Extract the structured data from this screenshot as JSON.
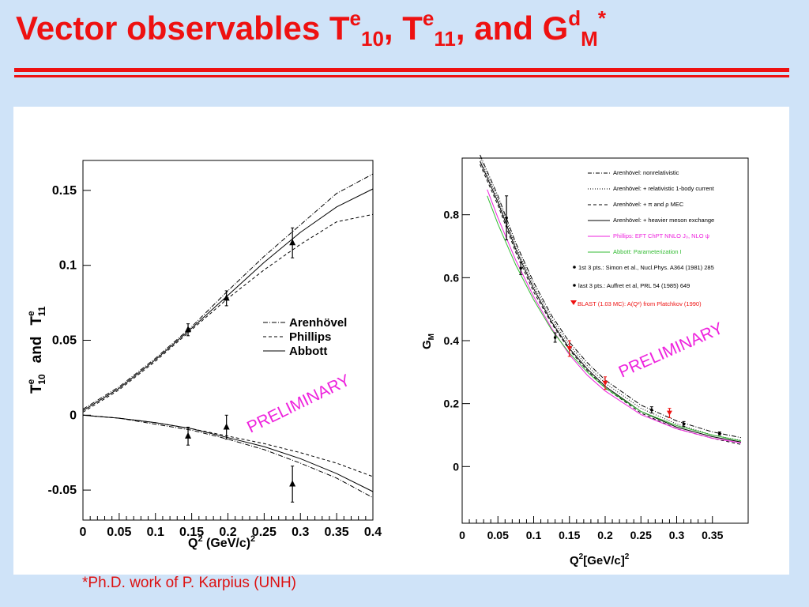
{
  "title": {
    "prefix": "Vector observables T",
    "sup1": "e",
    "sub1": "10",
    "mid1": ", T",
    "sup2": "e",
    "sub2": "11",
    "mid2": ", and G",
    "sup3": "d",
    "sub3": "M",
    "star": "*"
  },
  "footnote": "*Ph.D. work of P. Karpius (UNH)",
  "colors": {
    "title_red": "#ee1111",
    "magenta": "#ee22dd",
    "green": "#33bb33",
    "blast_red": "#ee1111"
  },
  "chart_data": [
    {
      "type": "line",
      "xlabel": "Q",
      "xlabel_sup": "2",
      "xlabel_unit": " (GeV/c)",
      "xlabel_unit_sup": "2",
      "ylabel": {
        "t10": "T",
        "t10_sup": "e",
        "t10_sub": "10",
        "and": "and",
        "t11": "T",
        "t11_sup": "e",
        "t11_sub": "11"
      },
      "xlim": [
        0,
        0.4
      ],
      "ylim": [
        -0.07,
        0.17
      ],
      "x_ticks": [
        "0",
        "0.05",
        "0.1",
        "0.15",
        "0.2",
        "0.25",
        "0.3",
        "0.35",
        "0.4"
      ],
      "y_ticks": [
        {
          "v": 0.15,
          "label": "0.15"
        },
        {
          "v": 0.1,
          "label": "0.1"
        },
        {
          "v": 0.05,
          "label": "0.05"
        },
        {
          "v": 0,
          "label": "0"
        },
        {
          "v": -0.05,
          "label": "-0.05"
        }
      ],
      "legend": {
        "placement": "right",
        "entries": [
          {
            "name": "Arenhövel",
            "dash": "dashdot"
          },
          {
            "name": "Phillips",
            "dash": "dashed"
          },
          {
            "name": "Abbott",
            "dash": "solid"
          }
        ]
      },
      "annotation": "PRELIMINARY",
      "series": [
        {
          "group": "T10",
          "model": "Arenhövel",
          "dash": "dashdot",
          "x": [
            0,
            0.05,
            0.1,
            0.15,
            0.2,
            0.25,
            0.3,
            0.35,
            0.4
          ],
          "y": [
            0.004,
            0.019,
            0.038,
            0.059,
            0.083,
            0.106,
            0.127,
            0.148,
            0.161
          ]
        },
        {
          "group": "T10",
          "model": "Phillips",
          "dash": "dashed",
          "x": [
            0,
            0.05,
            0.1,
            0.15,
            0.2,
            0.25,
            0.3,
            0.35,
            0.4
          ],
          "y": [
            0.002,
            0.017,
            0.036,
            0.057,
            0.078,
            0.097,
            0.114,
            0.129,
            0.134
          ]
        },
        {
          "group": "T10",
          "model": "Abbott",
          "dash": "solid",
          "x": [
            0,
            0.05,
            0.1,
            0.15,
            0.2,
            0.25,
            0.3,
            0.35,
            0.4
          ],
          "y": [
            0.003,
            0.018,
            0.037,
            0.058,
            0.08,
            0.102,
            0.122,
            0.139,
            0.151
          ]
        },
        {
          "group": "T11",
          "model": "Arenhövel",
          "dash": "dashdot",
          "x": [
            0,
            0.05,
            0.1,
            0.15,
            0.2,
            0.25,
            0.3,
            0.35,
            0.4
          ],
          "y": [
            0,
            -0.002,
            -0.006,
            -0.01,
            -0.016,
            -0.023,
            -0.032,
            -0.042,
            -0.055
          ]
        },
        {
          "group": "T11",
          "model": "Phillips",
          "dash": "dashed",
          "x": [
            0,
            0.05,
            0.1,
            0.15,
            0.2,
            0.25,
            0.3,
            0.35,
            0.4
          ],
          "y": [
            0,
            -0.002,
            -0.005,
            -0.009,
            -0.014,
            -0.019,
            -0.025,
            -0.032,
            -0.041
          ]
        },
        {
          "group": "T11",
          "model": "Abbott",
          "dash": "solid",
          "x": [
            0,
            0.05,
            0.1,
            0.15,
            0.2,
            0.25,
            0.3,
            0.35,
            0.4
          ],
          "y": [
            0,
            -0.002,
            -0.005,
            -0.009,
            -0.015,
            -0.021,
            -0.029,
            -0.039,
            -0.051
          ]
        }
      ],
      "points": [
        {
          "group": "T10",
          "x": 0.145,
          "y": 0.057,
          "err": 0.004
        },
        {
          "group": "T10",
          "x": 0.198,
          "y": 0.078,
          "err": 0.005
        },
        {
          "group": "T10",
          "x": 0.289,
          "y": 0.115,
          "err": 0.01
        },
        {
          "group": "T11",
          "x": 0.145,
          "y": -0.014,
          "err": 0.006
        },
        {
          "group": "T11",
          "x": 0.198,
          "y": -0.008,
          "err": 0.008
        },
        {
          "group": "T11",
          "x": 0.289,
          "y": -0.046,
          "err": 0.012
        }
      ]
    },
    {
      "type": "line",
      "xlabel": "Q",
      "xlabel_sup": "2",
      "xlabel_unit": "[GeV/c]",
      "xlabel_unit_sup": "2",
      "ylabel": "G",
      "ylabel_sub": "M",
      "xlim": [
        0,
        0.4
      ],
      "ylim": [
        -0.18,
        0.98
      ],
      "x_ticks": [
        "0",
        "0.05",
        "0.1",
        "0.15",
        "0.2",
        "0.25",
        "0.3",
        "0.35"
      ],
      "y_ticks": [
        {
          "v": 0.8,
          "label": "0.8"
        },
        {
          "v": 0.6,
          "label": "0.6"
        },
        {
          "v": 0.4,
          "label": "0.4"
        },
        {
          "v": 0.2,
          "label": "0.2"
        },
        {
          "v": 0,
          "label": "0"
        }
      ],
      "legend": {
        "placement": "top-right",
        "entries": [
          {
            "name": "Arenhövel: nonrelativistic",
            "style": "dashdot",
            "color": "#000000"
          },
          {
            "name": "Arenhövel: + relativistic 1-body current",
            "style": "dotted",
            "color": "#000000"
          },
          {
            "name": "Arenhövel: + π and ρ MEC",
            "style": "dashed",
            "color": "#000000"
          },
          {
            "name": "Arenhövel: + heavier meson exchange",
            "style": "solid",
            "color": "#000000"
          },
          {
            "name": "Phillips: EFT ChPT NNLO J₀, NLO ψ",
            "style": "solid",
            "color": "#ee22dd"
          },
          {
            "name": "Abbott: Parameterization I",
            "style": "solid",
            "color": "#33bb33"
          },
          {
            "name": "1st 3 pts.: Simon et al., Nucl.Phys. A364 (1981) 285",
            "style": "dot",
            "color": "#000000"
          },
          {
            "name": "last 3 pts.: Auffret et al, PRL 54 (1985) 649",
            "style": "dot",
            "color": "#000000"
          },
          {
            "name": "BLAST (1.03 MC): A(Q²) from Platchkov (1990)",
            "style": "triangle",
            "color": "#ee1111"
          }
        ]
      },
      "annotation": "PRELIMINARY",
      "series": [
        {
          "model": "Arenhövel: nonrelativistic",
          "dash": "dashdot",
          "color": "#000000",
          "x": [
            0.025,
            0.05,
            0.075,
            0.1,
            0.125,
            0.15,
            0.175,
            0.2,
            0.25,
            0.3,
            0.35,
            0.39
          ],
          "y": [
            0.99,
            0.86,
            0.71,
            0.585,
            0.48,
            0.395,
            0.33,
            0.275,
            0.195,
            0.145,
            0.11,
            0.092
          ]
        },
        {
          "model": "Arenhövel: + relativistic 1-body current",
          "dash": "dotted",
          "color": "#000000",
          "x": [
            0.025,
            0.05,
            0.075,
            0.1,
            0.125,
            0.15,
            0.175,
            0.2,
            0.25,
            0.3,
            0.35,
            0.39
          ],
          "y": [
            0.98,
            0.85,
            0.7,
            0.575,
            0.47,
            0.385,
            0.32,
            0.265,
            0.185,
            0.135,
            0.1,
            0.083
          ]
        },
        {
          "model": "Arenhövel: + π and ρ MEC",
          "dash": "dashed",
          "color": "#000000",
          "x": [
            0.025,
            0.05,
            0.075,
            0.1,
            0.125,
            0.15,
            0.175,
            0.2,
            0.25,
            0.3,
            0.35,
            0.39
          ],
          "y": [
            0.96,
            0.83,
            0.68,
            0.555,
            0.455,
            0.37,
            0.305,
            0.25,
            0.17,
            0.12,
            0.09,
            0.07
          ]
        },
        {
          "model": "Arenhövel: + heavier meson exchange",
          "dash": "solid",
          "color": "#000000",
          "x": [
            0.025,
            0.05,
            0.075,
            0.1,
            0.125,
            0.15,
            0.175,
            0.2,
            0.25,
            0.3,
            0.35,
            0.39
          ],
          "y": [
            0.97,
            0.84,
            0.69,
            0.565,
            0.46,
            0.375,
            0.31,
            0.255,
            0.175,
            0.125,
            0.095,
            0.078
          ]
        },
        {
          "model": "Phillips: EFT ChPT NNLO J₀, NLO ψ",
          "dash": "solid",
          "color": "#ee22dd",
          "x": [
            0.035,
            0.05,
            0.075,
            0.1,
            0.125,
            0.15,
            0.175,
            0.2,
            0.25,
            0.3,
            0.35,
            0.39
          ],
          "y": [
            0.88,
            0.79,
            0.655,
            0.54,
            0.44,
            0.355,
            0.29,
            0.24,
            0.165,
            0.12,
            0.09,
            0.075
          ]
        },
        {
          "model": "Abbott: Parameterization I",
          "dash": "solid",
          "color": "#33bb33",
          "x": [
            0.035,
            0.05,
            0.075,
            0.1,
            0.125,
            0.15,
            0.175,
            0.2,
            0.25,
            0.3,
            0.35,
            0.39
          ],
          "y": [
            0.86,
            0.77,
            0.64,
            0.53,
            0.435,
            0.36,
            0.3,
            0.25,
            0.175,
            0.13,
            0.1,
            0.082
          ]
        }
      ],
      "points": [
        {
          "set": "Simon",
          "x": 0.062,
          "y": 0.79,
          "err": 0.07,
          "color": "#000000"
        },
        {
          "set": "Simon",
          "x": 0.082,
          "y": 0.63,
          "err": 0.02,
          "color": "#000000"
        },
        {
          "set": "Simon",
          "x": 0.13,
          "y": 0.41,
          "err": 0.015,
          "color": "#000000"
        },
        {
          "set": "Auffret",
          "x": 0.265,
          "y": 0.18,
          "err": 0.01,
          "color": "#000000"
        },
        {
          "set": "Auffret",
          "x": 0.31,
          "y": 0.135,
          "err": 0.008,
          "color": "#000000"
        },
        {
          "set": "Auffret",
          "x": 0.36,
          "y": 0.105,
          "err": 0.005,
          "color": "#000000"
        },
        {
          "set": "BLAST",
          "x": 0.15,
          "y": 0.375,
          "err": 0.025,
          "color": "#ee1111"
        },
        {
          "set": "BLAST",
          "x": 0.2,
          "y": 0.265,
          "err": 0.02,
          "color": "#ee1111"
        },
        {
          "set": "BLAST",
          "x": 0.29,
          "y": 0.17,
          "err": 0.015,
          "color": "#ee1111"
        }
      ]
    }
  ]
}
